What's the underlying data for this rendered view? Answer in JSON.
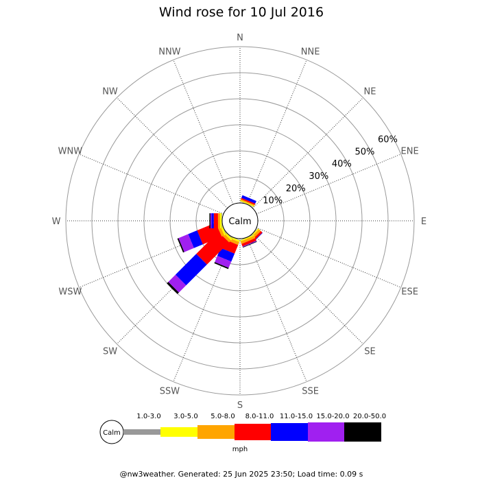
{
  "chart_data": {
    "type": "wind-rose",
    "title": "Wind rose for 10 Jul 2016",
    "directions": [
      "N",
      "NNE",
      "NE",
      "ENE",
      "E",
      "ESE",
      "SE",
      "SSE",
      "S",
      "SSW",
      "SW",
      "WSW",
      "W",
      "WNW",
      "NW",
      "NNW"
    ],
    "ring_labels": [
      "10%",
      "20%",
      "30%",
      "40%",
      "50%",
      "60%"
    ],
    "ring_values": [
      10,
      20,
      30,
      40,
      50,
      60
    ],
    "rmax": 60,
    "calm_label": "Calm",
    "units": "mph",
    "speed_bins": [
      "1.0-3.0",
      "3.0-5.0",
      "5.0-8.0",
      "8.0-11.0",
      "11.0-15.0",
      "15.0-20.0",
      "20.0-50.0"
    ],
    "bin_colors": [
      "#999999",
      "#ffff00",
      "#ffa500",
      "#ff0000",
      "#0000ff",
      "#a020f0",
      "#000000"
    ],
    "bin_edges": {
      "NNE": [
        0.2,
        0.5,
        1.0,
        1.5,
        2.6,
        2.6,
        2.6
      ],
      "SE": [
        0.2,
        0.6,
        1.6,
        2.4,
        2.6,
        2.6,
        2.6
      ],
      "SSE": [
        0.2,
        0.6,
        1.6,
        2.6,
        2.7,
        2.9,
        3.1
      ],
      "SSW": [
        0.2,
        0.8,
        2.0,
        5.6,
        8.9,
        11.5,
        12.0
      ],
      "SW": [
        0.2,
        0.9,
        2.0,
        14.0,
        25.3,
        29.2,
        30.0
      ],
      "WSW": [
        0.2,
        0.9,
        2.0,
        9.8,
        13.5,
        17.5,
        18.0
      ],
      "W": [
        0.2,
        0.8,
        1.6,
        3.2,
        4.1,
        4.5,
        4.9
      ]
    },
    "grid": true,
    "legend_position": "bottom"
  },
  "legend": {
    "units": "mph",
    "calm": "Calm"
  },
  "footer": "@nw3weather. Generated: 25 Jun 2025 23:50; Load time: 0.09 s"
}
